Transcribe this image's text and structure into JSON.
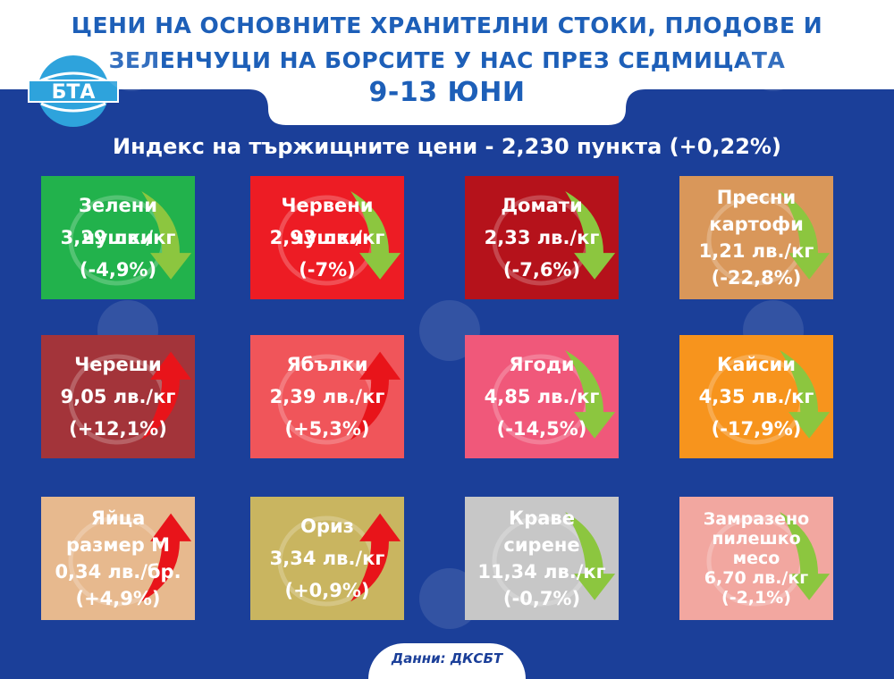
{
  "header": {
    "title_line1": "ЦЕНИ НА ОСНОВНИТЕ ХРАНИТЕЛНИ СТОКИ, ПЛОДОВЕ И",
    "title_line2": "ЗЕЛЕНЧУЦИ НА БОРСИТЕ У НАС ПРЕЗ СЕДМИЦАТА",
    "dates": "9-13 ЮНИ",
    "logo_text": "БТА"
  },
  "index_text": "Индекс на тържищните цени - 2,230 пункта (+0,22%)",
  "colors": {
    "background": "#1b3f99",
    "title": "#1d5fb8",
    "up_arrow": "#e8141a",
    "down_arrow": "#8cc63f"
  },
  "items": [
    {
      "name": "Зелени чушки",
      "price": "3,29 лв./кг",
      "change": "(-4,9%)",
      "trend": "down",
      "color": "#22b24c",
      "icon": "pepper-icon"
    },
    {
      "name": "Червени чушки",
      "price": "2,93 лв./кг",
      "change": "(-7%)",
      "trend": "down",
      "color": "#ed1c24",
      "icon": "pepper-icon"
    },
    {
      "name": "Домати",
      "price": "2,33 лв./кг",
      "change": "(-7,6%)",
      "trend": "down",
      "color": "#b5121b",
      "icon": "tomato-icon"
    },
    {
      "name": "Пресни",
      "name2": "картофи",
      "price": "1,21 лв./кг",
      "change": "(-22,8%)",
      "trend": "down",
      "color": "#d9975a",
      "icon": "potato-icon"
    },
    {
      "name": "Череши",
      "price": "9,05 лв./кг",
      "change": "(+12,1%)",
      "trend": "up",
      "color": "#a3343a",
      "icon": "cherry-icon"
    },
    {
      "name": "Ябълки",
      "price": "2,39 лв./кг",
      "change": "(+5,3%)",
      "trend": "up",
      "color": "#f0555a",
      "icon": "apple-icon"
    },
    {
      "name": "Ягоди",
      "price": "4,85 лв./кг",
      "change": "(-14,5%)",
      "trend": "down",
      "color": "#f0587a",
      "icon": "strawberry-icon"
    },
    {
      "name": "Кайсии",
      "price": "4,35 лв./кг",
      "change": "(-17,9%)",
      "trend": "down",
      "color": "#f7941d",
      "icon": "apricot-icon"
    },
    {
      "name": "Яйца",
      "name2": "размер М",
      "price": "0,34 лв./бр.",
      "change": "(+4,9%)",
      "trend": "up",
      "color": "#e7b98e",
      "icon": "egg-icon"
    },
    {
      "name": "Ориз",
      "price": "3,34 лв./кг",
      "change": "(+0,9%)",
      "trend": "up",
      "color": "#c9b560",
      "icon": "rice-icon"
    },
    {
      "name": "Краве",
      "name2": "сирене",
      "price": "11,34 лв./кг",
      "change": "(-0,7%)",
      "trend": "down",
      "color": "#c7c7c7",
      "icon": "cheese-icon"
    },
    {
      "name": "Замразено",
      "name2": "пилешко",
      "name3": "месо",
      "price": "6,70 лв./кг",
      "change": "(-2,1%)",
      "trend": "down",
      "color": "#f2a7a0",
      "icon": "chicken-icon"
    }
  ],
  "footer": "Данни: ДКСБТ"
}
